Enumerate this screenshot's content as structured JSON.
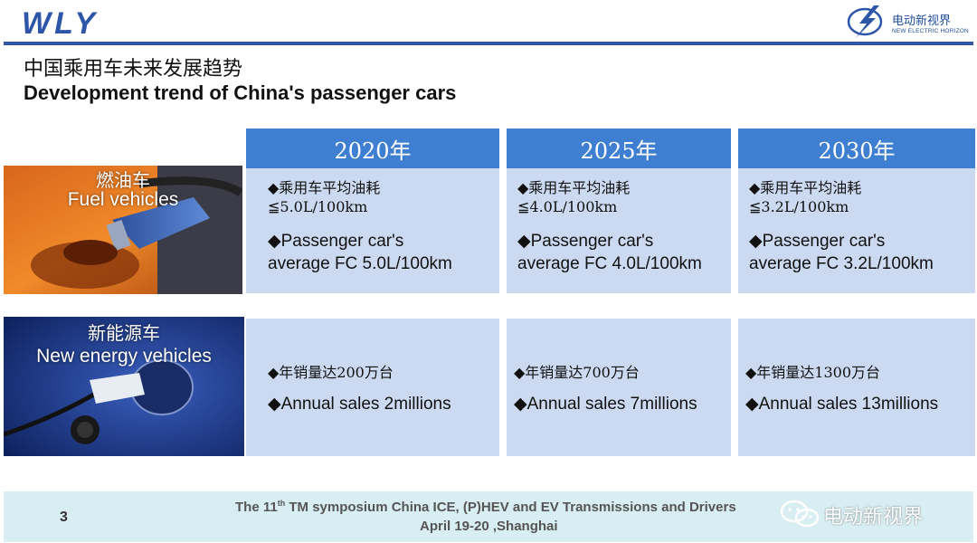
{
  "header": {
    "logo_text": "WLY",
    "brand_cn": "电动新视界",
    "brand_en": "NEW ELECTRIC HORIZON"
  },
  "title": {
    "cn": "中国乘用车未来发展趋势",
    "en": "Development trend of China's passenger cars"
  },
  "years": [
    "2020年",
    "2025年",
    "2030年"
  ],
  "rows": [
    {
      "label_cn": "燃油车",
      "label_en": "Fuel vehicles",
      "cells": [
        {
          "cn_line1": "◆乘用车平均油耗",
          "cn_line2": "≦5.0L/100km",
          "en_line1": "◆Passenger car's",
          "en_line2": "average FC 5.0L/100km"
        },
        {
          "cn_line1": "◆乘用车平均油耗",
          "cn_line2": "≦4.0L/100km",
          "en_line1": "◆Passenger car's",
          "en_line2": "average FC 4.0L/100km"
        },
        {
          "cn_line1": "◆乘用车平均油耗",
          "cn_line2": "≦3.2L/100km",
          "en_line1": "◆Passenger car's",
          "en_line2": "average FC 3.2L/100km"
        }
      ]
    },
    {
      "label_cn": "新能源车",
      "label_en": "New energy vehicles",
      "cells": [
        {
          "cn_line1": "◆年销量达200万台",
          "en_line1": "◆Annual sales  2millions"
        },
        {
          "cn_line1": "◆年销量达700万台",
          "en_line1": "◆Annual sales  7millions"
        },
        {
          "cn_line1": "◆年销量达1300万台",
          "en_line1": "◆Annual sales  13millions"
        }
      ]
    }
  ],
  "footer": {
    "page_number": "3",
    "conference_pre": "The 11",
    "conference_sup": "th",
    "conference_post": " TM symposium China ICE, (P)HEV and EV Transmissions and Drivers",
    "date_place": "April 19-20 ,Shanghai",
    "wechat_name": "电动新视界"
  },
  "colors": {
    "accent": "#2d55a8",
    "year_header": "#3f7fd2",
    "cell_bg": "#cbdaf0",
    "footer_bg": "#d9eef2"
  }
}
